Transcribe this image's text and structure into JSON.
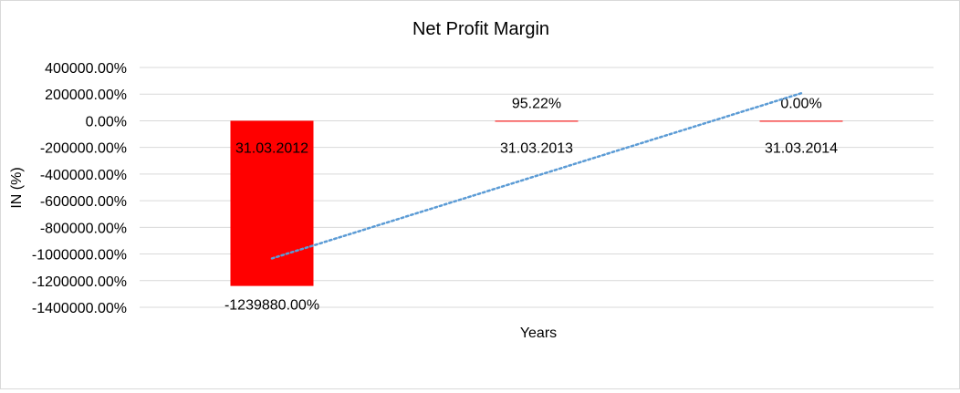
{
  "chart_data": {
    "type": "bar",
    "title": "Net Profit Margin",
    "xlabel": "Years",
    "ylabel": "IN (%)",
    "categories": [
      "31.03.2012",
      "31.03.2013",
      "31.03.2014"
    ],
    "series": [
      {
        "values": [
          -1239880.0,
          95.22,
          0.0
        ],
        "color": "#ff0000"
      }
    ],
    "data_labels": [
      "-1239880.00%",
      "95.22%",
      "0.00%"
    ],
    "y_ticks": [
      400000,
      200000,
      0,
      -200000,
      -400000,
      -600000,
      -800000,
      -1000000,
      -1200000,
      -1400000
    ],
    "y_tick_labels": [
      "400000.00%",
      "200000.00%",
      "0.00%",
      "-200000.00%",
      "-400000.00%",
      "-600000.00%",
      "-800000.00%",
      "-1000000.00%",
      "-1200000.00%",
      "-1400000.00%"
    ],
    "ylim": [
      -1400000,
      400000
    ],
    "grid": true,
    "legend": "none",
    "trendline": {
      "type": "linear",
      "style": "dotted",
      "color": "#5b9bd5"
    },
    "gridline_color": "#d9d9d9"
  }
}
